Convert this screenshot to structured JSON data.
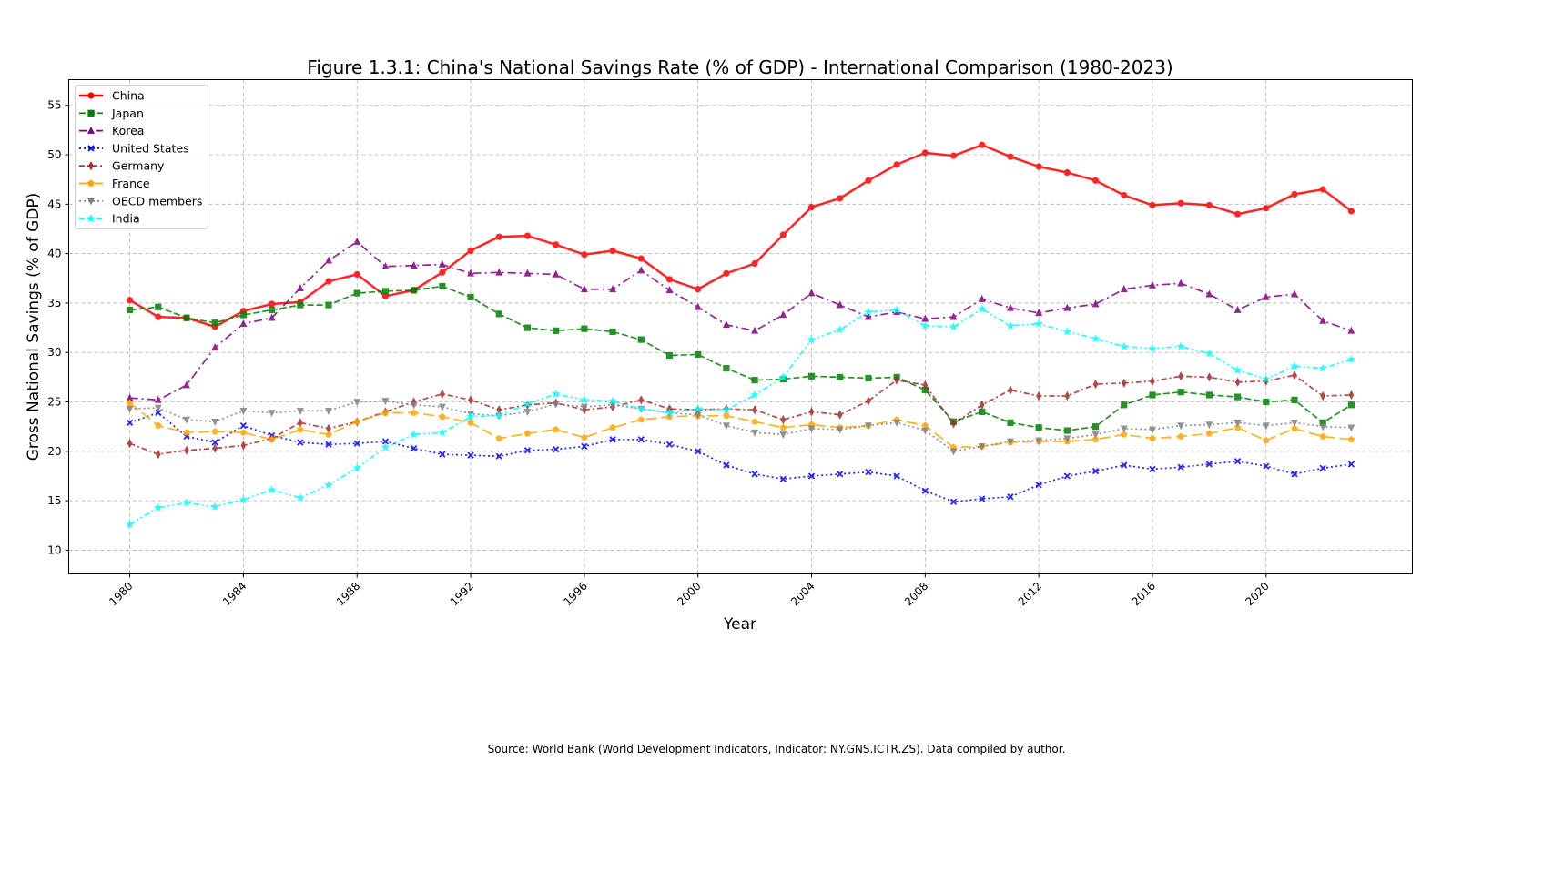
{
  "chart_data": {
    "type": "line",
    "title": "Figure 1.3.1: China's National Savings Rate (% of GDP) - International Comparison (1980-2023)",
    "xlabel": "Year",
    "ylabel": "Gross National Savings (% of GDP)",
    "xlim": [
      1977.85,
      2025.15
    ],
    "ylim": [
      7.6,
      57.6
    ],
    "xticks": [
      1980,
      1984,
      1988,
      1992,
      1996,
      2000,
      2004,
      2008,
      2012,
      2016,
      2020
    ],
    "yticks": [
      10,
      15,
      20,
      25,
      30,
      35,
      40,
      45,
      50,
      55
    ],
    "grid": true,
    "legend_position": "top-left",
    "x": [
      1980,
      1981,
      1982,
      1983,
      1984,
      1985,
      1986,
      1987,
      1988,
      1989,
      1990,
      1991,
      1992,
      1993,
      1994,
      1995,
      1996,
      1997,
      1998,
      1999,
      2000,
      2001,
      2002,
      2003,
      2004,
      2005,
      2006,
      2007,
      2008,
      2009,
      2010,
      2011,
      2012,
      2013,
      2014,
      2015,
      2016,
      2017,
      2018,
      2019,
      2020,
      2021,
      2022,
      2023
    ],
    "series": [
      {
        "name": "China",
        "color": "#ff0000",
        "marker": "circle",
        "dash": "",
        "width": 2.5,
        "values": [
          35.3,
          33.6,
          33.5,
          32.6,
          34.2,
          34.9,
          35.1,
          37.2,
          37.9,
          35.7,
          36.3,
          38.1,
          40.3,
          41.7,
          41.8,
          40.9,
          39.9,
          40.3,
          39.5,
          37.4,
          36.4,
          38.0,
          39.0,
          41.9,
          44.7,
          45.6,
          47.4,
          49.0,
          50.2,
          49.9,
          51.0,
          49.8,
          48.8,
          48.2,
          47.4,
          45.9,
          44.9,
          45.1,
          44.9,
          44.0,
          44.6,
          46.0,
          46.5,
          44.3
        ]
      },
      {
        "name": "Japan",
        "color": "#008000",
        "marker": "square",
        "dash": "7,3",
        "width": 1.7,
        "values": [
          34.3,
          34.6,
          33.5,
          33.0,
          33.8,
          34.3,
          34.8,
          34.8,
          36.0,
          36.2,
          36.3,
          36.7,
          35.6,
          33.9,
          32.5,
          32.2,
          32.4,
          32.1,
          31.3,
          29.7,
          29.8,
          28.4,
          27.2,
          27.3,
          27.6,
          27.5,
          27.4,
          27.5,
          26.2,
          23.0,
          24.0,
          22.9,
          22.4,
          22.1,
          22.5,
          24.7,
          25.7,
          26.0,
          25.7,
          25.5,
          25.0,
          25.2,
          22.9,
          24.7
        ]
      },
      {
        "name": "Korea",
        "color": "#800080",
        "marker": "triangle-up",
        "dash": "9,4,2,4",
        "width": 1.7,
        "values": [
          25.4,
          25.2,
          26.7,
          30.5,
          32.9,
          33.5,
          36.5,
          39.3,
          41.2,
          38.7,
          38.8,
          38.9,
          38.0,
          38.1,
          38.0,
          37.9,
          36.4,
          36.4,
          38.3,
          36.3,
          34.6,
          32.8,
          32.2,
          33.8,
          36.0,
          34.8,
          33.6,
          34.1,
          33.4,
          33.6,
          35.4,
          34.5,
          34.0,
          34.5,
          34.9,
          36.4,
          36.8,
          37.0,
          35.9,
          34.3,
          35.6,
          35.9,
          33.2,
          32.2
        ]
      },
      {
        "name": "United States",
        "color": "#0000ff",
        "marker": "x",
        "dash": "2,3",
        "width": 1.7,
        "values": [
          22.9,
          23.9,
          21.5,
          20.9,
          22.6,
          21.6,
          20.9,
          20.7,
          20.8,
          21.0,
          20.3,
          19.7,
          19.6,
          19.5,
          20.1,
          20.2,
          20.5,
          21.2,
          21.2,
          20.7,
          20.0,
          18.6,
          17.7,
          17.2,
          17.5,
          17.7,
          17.9,
          17.5,
          16.0,
          14.9,
          15.2,
          15.4,
          16.6,
          17.5,
          18.0,
          18.6,
          18.2,
          18.4,
          18.7,
          19.0,
          18.5,
          17.7,
          18.3,
          18.7
        ]
      },
      {
        "name": "Germany",
        "color": "#a52a2a",
        "marker": "thin-diamond",
        "dash": "6,3,2,3",
        "width": 1.7,
        "values": [
          20.8,
          19.7,
          20.1,
          20.3,
          20.6,
          21.3,
          22.9,
          22.3,
          23.0,
          24.0,
          25.0,
          25.8,
          25.2,
          24.2,
          24.7,
          24.9,
          24.2,
          24.5,
          25.2,
          24.3,
          24.2,
          24.3,
          24.2,
          23.2,
          24.0,
          23.7,
          25.1,
          27.2,
          26.7,
          22.8,
          24.7,
          26.2,
          25.6,
          25.6,
          26.8,
          26.9,
          27.1,
          27.6,
          27.5,
          27.0,
          27.1,
          27.7,
          25.6,
          25.7
        ]
      },
      {
        "name": "France",
        "color": "#ffa500",
        "marker": "pentagon",
        "dash": "12,5",
        "width": 1.7,
        "values": [
          24.9,
          22.6,
          21.9,
          22.0,
          21.9,
          21.2,
          22.2,
          21.7,
          23.0,
          23.9,
          23.9,
          23.5,
          22.9,
          21.3,
          21.8,
          22.2,
          21.4,
          22.4,
          23.2,
          23.5,
          23.6,
          23.6,
          23.0,
          22.4,
          22.7,
          22.4,
          22.6,
          23.2,
          22.6,
          20.4,
          20.5,
          20.9,
          21.0,
          21.0,
          21.2,
          21.7,
          21.3,
          21.5,
          21.8,
          22.4,
          21.1,
          22.3,
          21.5,
          21.2
        ]
      },
      {
        "name": "OECD members",
        "color": "#808080",
        "marker": "triangle-down",
        "dash": "2,3",
        "width": 1.7,
        "values": [
          24.3,
          24.4,
          23.2,
          23.0,
          24.1,
          23.9,
          24.1,
          24.1,
          25.0,
          25.1,
          24.7,
          24.5,
          23.8,
          23.6,
          24.0,
          24.8,
          24.5,
          24.7,
          24.3,
          23.9,
          23.7,
          22.6,
          21.9,
          21.7,
          22.3,
          22.2,
          22.6,
          22.9,
          22.1,
          20.0,
          20.5,
          21.0,
          21.1,
          21.3,
          21.7,
          22.3,
          22.2,
          22.6,
          22.7,
          22.9,
          22.6,
          22.9,
          22.5,
          22.4
        ]
      },
      {
        "name": "India",
        "color": "#00ffff",
        "marker": "star",
        "dash": "6,3,2,3,2,3",
        "width": 1.7,
        "values": [
          12.6,
          14.3,
          14.8,
          14.4,
          15.1,
          16.1,
          15.3,
          16.6,
          18.3,
          20.4,
          21.7,
          21.9,
          23.5,
          23.6,
          24.8,
          25.8,
          25.2,
          25.1,
          24.3,
          23.9,
          24.3,
          24.2,
          25.7,
          27.5,
          31.3,
          32.3,
          34.1,
          34.3,
          32.7,
          32.6,
          34.4,
          32.7,
          32.9,
          32.1,
          31.4,
          30.6,
          30.4,
          30.6,
          29.9,
          28.2,
          27.3,
          28.6,
          28.4,
          29.3
        ]
      }
    ]
  },
  "source_note": "Source: World Bank (World Development Indicators, Indicator: NY.GNS.ICTR.ZS). Data compiled by author."
}
